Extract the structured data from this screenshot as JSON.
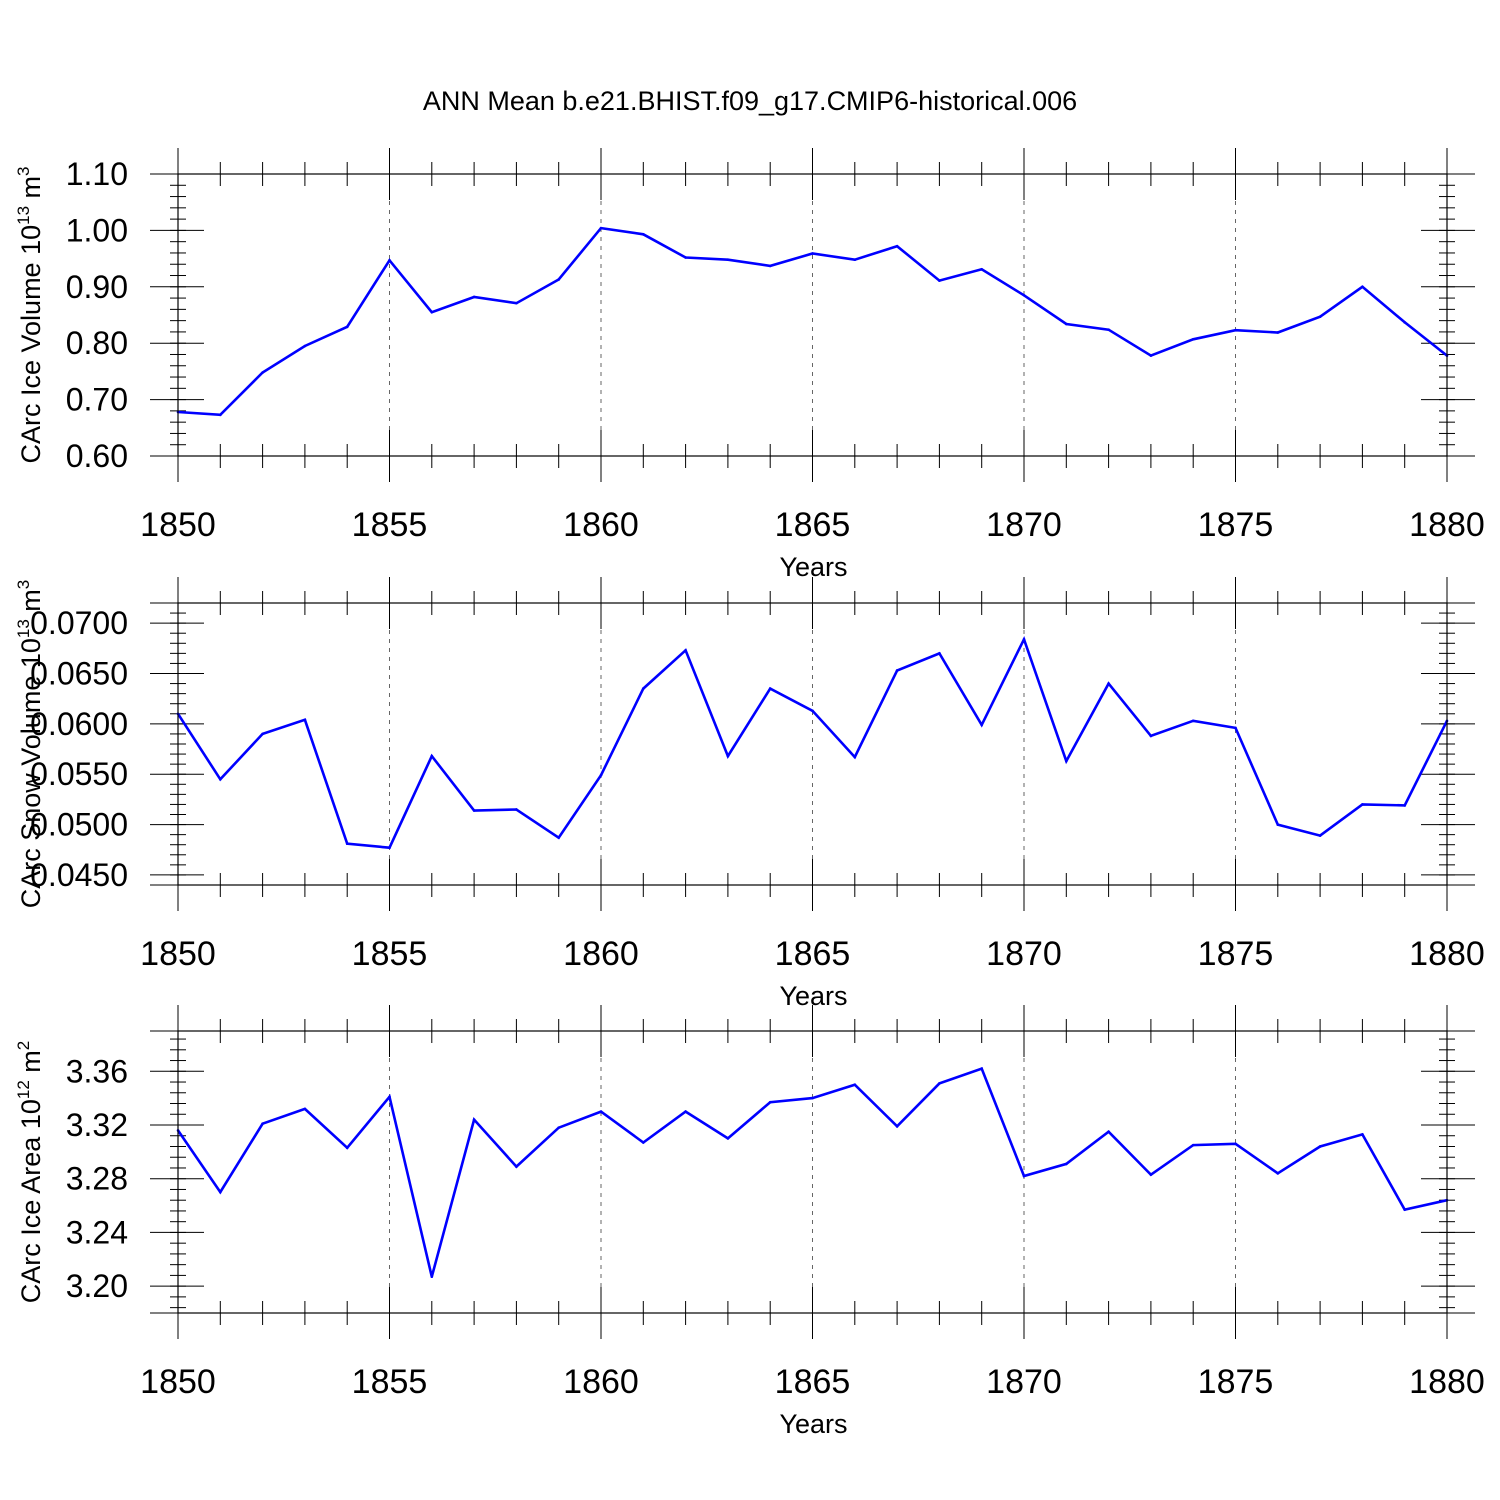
{
  "title": "ANN Mean b.e21.BHIST.f09_g17.CMIP6-historical.006",
  "line_color": "#0000ff",
  "chart_data": [
    {
      "type": "line",
      "xlabel": "Years",
      "ylabel_main": "CArc Ice Volume 10",
      "ylabel_exp": "13",
      "ylabel_unit": " m",
      "ylabel_unit_exp": "3",
      "xlim": [
        1850,
        1880
      ],
      "ylim": [
        0.6,
        1.1
      ],
      "xticks": [
        1850,
        1855,
        1860,
        1865,
        1870,
        1875,
        1880
      ],
      "yticks": [
        "0.60",
        "0.70",
        "0.80",
        "0.90",
        "1.00",
        "1.10"
      ],
      "x": [
        1850,
        1851,
        1852,
        1853,
        1854,
        1855,
        1856,
        1857,
        1858,
        1859,
        1860,
        1861,
        1862,
        1863,
        1864,
        1865,
        1866,
        1867,
        1868,
        1869,
        1870,
        1871,
        1872,
        1873,
        1874,
        1875,
        1876,
        1877,
        1878,
        1879,
        1880
      ],
      "values": [
        0.678,
        0.673,
        0.748,
        0.795,
        0.829,
        0.947,
        0.855,
        0.882,
        0.871,
        0.913,
        1.004,
        0.993,
        0.952,
        0.948,
        0.937,
        0.959,
        0.948,
        0.972,
        0.911,
        0.931,
        0.885,
        0.834,
        0.824,
        0.778,
        0.807,
        0.823,
        0.819,
        0.847,
        0.9,
        0.837,
        0.778
      ]
    },
    {
      "type": "line",
      "xlabel": "Years",
      "ylabel_main": "CArc Snow Volume 10",
      "ylabel_exp": "13",
      "ylabel_unit": " m",
      "ylabel_unit_exp": "3",
      "xlim": [
        1850,
        1880
      ],
      "ylim": [
        0.044,
        0.072
      ],
      "xticks": [
        1850,
        1855,
        1860,
        1865,
        1870,
        1875,
        1880
      ],
      "yticks": [
        "0.0450",
        "0.0500",
        "0.0550",
        "0.0600",
        "0.0650",
        "0.0700"
      ],
      "x": [
        1850,
        1851,
        1852,
        1853,
        1854,
        1855,
        1856,
        1857,
        1858,
        1859,
        1860,
        1861,
        1862,
        1863,
        1864,
        1865,
        1866,
        1867,
        1868,
        1869,
        1870,
        1871,
        1872,
        1873,
        1874,
        1875,
        1876,
        1877,
        1878,
        1879,
        1880
      ],
      "values": [
        0.061,
        0.0545,
        0.059,
        0.0604,
        0.0481,
        0.0477,
        0.0568,
        0.0514,
        0.0515,
        0.0487,
        0.0549,
        0.0635,
        0.0673,
        0.0568,
        0.0635,
        0.0613,
        0.0567,
        0.0653,
        0.067,
        0.0599,
        0.0684,
        0.0563,
        0.064,
        0.0588,
        0.0603,
        0.0596,
        0.05,
        0.0489,
        0.052,
        0.0519,
        0.0603
      ]
    },
    {
      "type": "line",
      "xlabel": "Years",
      "ylabel_main": "CArc Ice Area 10",
      "ylabel_exp": "12",
      "ylabel_unit": " m",
      "ylabel_unit_exp": "2",
      "xlim": [
        1850,
        1880
      ],
      "ylim": [
        3.18,
        3.39
      ],
      "xticks": [
        1850,
        1855,
        1860,
        1865,
        1870,
        1875,
        1880
      ],
      "yticks": [
        "3.20",
        "3.24",
        "3.28",
        "3.32",
        "3.36"
      ],
      "x": [
        1850,
        1851,
        1852,
        1853,
        1854,
        1855,
        1856,
        1857,
        1858,
        1859,
        1860,
        1861,
        1862,
        1863,
        1864,
        1865,
        1866,
        1867,
        1868,
        1869,
        1870,
        1871,
        1872,
        1873,
        1874,
        1875,
        1876,
        1877,
        1878,
        1879,
        1880
      ],
      "values": [
        3.316,
        3.27,
        3.321,
        3.332,
        3.303,
        3.341,
        3.207,
        3.324,
        3.289,
        3.318,
        3.33,
        3.307,
        3.33,
        3.31,
        3.337,
        3.34,
        3.35,
        3.319,
        3.351,
        3.362,
        3.282,
        3.291,
        3.315,
        3.283,
        3.305,
        3.306,
        3.284,
        3.304,
        3.313,
        3.257,
        3.264
      ]
    }
  ]
}
